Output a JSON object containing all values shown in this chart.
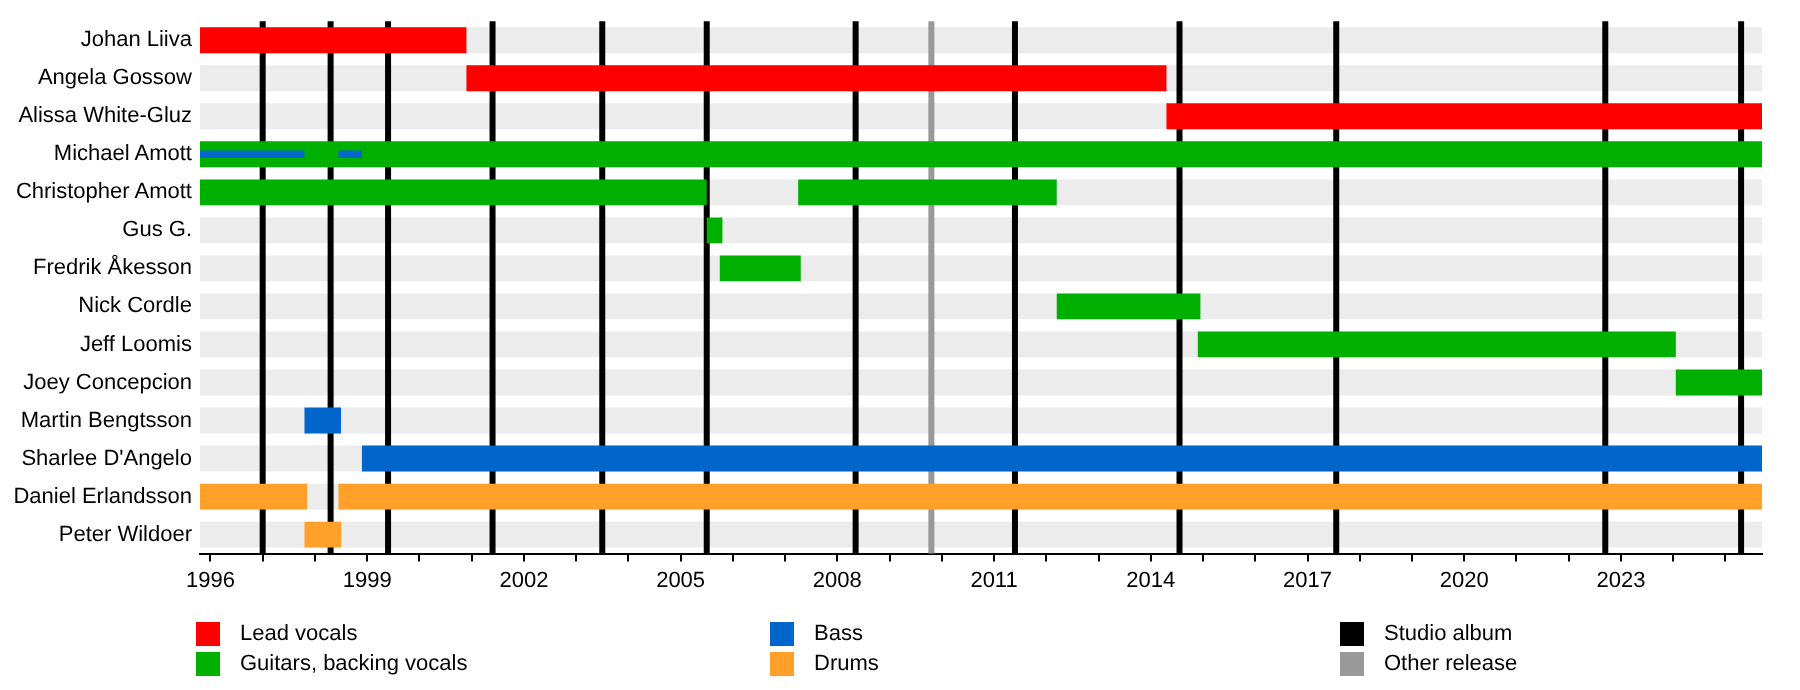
{
  "chart_data": {
    "type": "bar",
    "orientation": "horizontal",
    "categories": [
      "Johan Liiva",
      "Angela Gossow",
      "Alissa White-Gluz",
      "Michael Amott",
      "Christopher Amott",
      "Gus G.",
      "Fredrik Åkesson",
      "Nick Cordle",
      "Jeff Loomis",
      "Joey Concepcion",
      "Martin Bengtsson",
      "Sharlee D'Angelo",
      "Daniel Erlandsson",
      "Peter Wildoer"
    ],
    "series": [
      {
        "name": "Lead vocals",
        "color": "#ff0000",
        "base": [
          1995.8,
          2000.9,
          2014.3,
          null,
          null,
          null,
          null,
          null,
          null,
          null,
          null,
          null,
          null,
          null
        ],
        "values": [
          5.1,
          13.4,
          11.4,
          null,
          null,
          null,
          null,
          null,
          null,
          null,
          null,
          null,
          null,
          null
        ]
      },
      {
        "name": "Guitars, backing vocals",
        "color": "#00b000",
        "base": [
          null,
          null,
          null,
          1995.8,
          1995.8,
          2005.5,
          2005.75,
          2012.2,
          2014.9,
          2024.05,
          null,
          null,
          null,
          null
        ],
        "values": [
          null,
          null,
          null,
          29.9,
          9.7,
          0.3,
          1.55,
          2.75,
          9.15,
          1.65,
          null,
          null,
          null,
          null
        ]
      },
      {
        "color": "#00b000",
        "base": [
          null,
          null,
          null,
          null,
          2007.25,
          null,
          null,
          null,
          null,
          null,
          null,
          null,
          null,
          null
        ],
        "values": [
          null,
          null,
          null,
          null,
          4.95,
          null,
          null,
          null,
          null,
          null,
          null,
          null,
          null,
          null
        ]
      },
      {
        "name": "Bass",
        "color": "#0066cc",
        "base": [
          null,
          null,
          null,
          null,
          null,
          null,
          null,
          null,
          null,
          null,
          1997.8,
          1998.9,
          null,
          null
        ],
        "values": [
          null,
          null,
          null,
          null,
          null,
          null,
          null,
          null,
          null,
          null,
          0.7,
          26.8,
          null,
          null
        ]
      },
      {
        "color": "#0066cc",
        "base": [
          null,
          null,
          null,
          1995.8,
          null,
          null,
          null,
          null,
          null,
          null,
          null,
          null,
          null,
          null
        ],
        "values": [
          null,
          null,
          null,
          2.0,
          null,
          null,
          null,
          null,
          null,
          null,
          null,
          null,
          null,
          null
        ]
      },
      {
        "color": "#0066cc",
        "base": [
          null,
          null,
          null,
          1998.45,
          null,
          null,
          null,
          null,
          null,
          null,
          null,
          null,
          null,
          null
        ],
        "values": [
          null,
          null,
          null,
          0.45,
          null,
          null,
          null,
          null,
          null,
          null,
          null,
          null,
          null,
          null
        ]
      },
      {
        "name": "Drums",
        "color": "#ffa02a",
        "base": [
          null,
          null,
          null,
          null,
          null,
          null,
          null,
          null,
          null,
          null,
          null,
          null,
          1995.8,
          1997.8
        ],
        "values": [
          null,
          null,
          null,
          null,
          null,
          null,
          null,
          null,
          null,
          null,
          null,
          null,
          2.05,
          0.7
        ]
      },
      {
        "color": "#ffa02a",
        "base": [
          null,
          null,
          null,
          null,
          null,
          null,
          null,
          null,
          null,
          null,
          null,
          null,
          1998.45,
          null
        ],
        "values": [
          null,
          null,
          null,
          null,
          null,
          null,
          null,
          null,
          null,
          null,
          null,
          null,
          27.25,
          null
        ]
      }
    ],
    "xlim": [
      1995.8,
      2025.7
    ],
    "xticks": [
      1996,
      {
        "value": 1997,
        "label": null
      },
      {
        "value": 1998,
        "label": null
      },
      1999,
      {
        "value": 2000,
        "label": null
      },
      {
        "value": 2001,
        "label": null
      },
      2002,
      {
        "value": 2003,
        "label": null
      },
      {
        "value": 2004,
        "label": null
      },
      2005,
      {
        "value": 2006,
        "label": null
      },
      {
        "value": 2007,
        "label": null
      },
      2008,
      {
        "value": 2009,
        "label": null
      },
      {
        "value": 2010,
        "label": null
      },
      2011,
      {
        "value": 2012,
        "label": null
      },
      {
        "value": 2013,
        "label": null
      },
      2014,
      {
        "value": 2015,
        "label": null
      },
      {
        "value": 2016,
        "label": null
      },
      2017,
      {
        "value": 2018,
        "label": null
      },
      {
        "value": 2019,
        "label": null
      },
      2020,
      {
        "value": 2021,
        "label": null
      },
      {
        "value": 2022,
        "label": null
      },
      2023,
      {
        "value": 2024,
        "label": null
      },
      {
        "value": 2025,
        "label": null
      }
    ],
    "ref_lines": [
      {
        "axis": "x",
        "value": 1997.0,
        "color": "#000000",
        "label": "Studio album"
      },
      {
        "axis": "x",
        "value": 1998.3,
        "color": "#000000"
      },
      {
        "axis": "x",
        "value": 1999.4,
        "color": "#000000"
      },
      {
        "axis": "x",
        "value": 2001.4,
        "color": "#000000"
      },
      {
        "axis": "x",
        "value": 2003.5,
        "color": "#000000"
      },
      {
        "axis": "x",
        "value": 2005.5,
        "color": "#000000"
      },
      {
        "axis": "x",
        "value": 2008.35,
        "color": "#000000"
      },
      {
        "axis": "x",
        "value": 2011.4,
        "color": "#000000"
      },
      {
        "axis": "x",
        "value": 2014.55,
        "color": "#000000"
      },
      {
        "axis": "x",
        "value": 2017.55,
        "color": "#000000"
      },
      {
        "axis": "x",
        "value": 2022.7,
        "color": "#000000"
      },
      {
        "axis": "x",
        "value": 2025.3,
        "color": "#000000"
      },
      {
        "axis": "x",
        "value": 2009.8,
        "color": "#999999",
        "label": "Other release"
      }
    ],
    "legend": "bottom"
  }
}
